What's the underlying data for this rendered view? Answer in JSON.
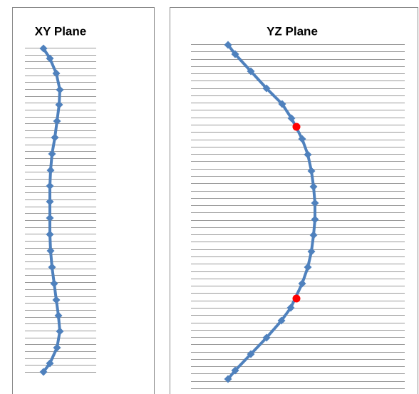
{
  "chart_data": [
    {
      "type": "line",
      "title": "XY Plane",
      "color": "#4f81bd",
      "xlim": [
        0,
        100
      ],
      "ylim": [
        0,
        460
      ],
      "x": [
        26,
        35,
        44,
        49,
        48,
        45,
        42,
        38,
        36,
        35,
        35,
        35,
        35,
        36,
        38,
        41,
        44,
        47,
        49,
        45,
        35,
        26
      ],
      "values": [
        457,
        443,
        422,
        399,
        378,
        355,
        332,
        309,
        286,
        264,
        242,
        219,
        196,
        173,
        150,
        127,
        104,
        82,
        60,
        37,
        15,
        3
      ]
    },
    {
      "type": "line",
      "title": "YZ Plane",
      "color": "#4f81bd",
      "xlim": [
        0,
        300
      ],
      "ylim": [
        0,
        475
      ],
      "x": [
        52,
        62,
        84,
        106,
        128,
        141,
        156,
        164,
        169,
        172,
        174,
        174,
        172,
        169,
        164,
        156,
        140,
        127,
        106,
        84,
        62,
        52
      ],
      "values": [
        472,
        459,
        435,
        411,
        389,
        369,
        340,
        318,
        295,
        273,
        250,
        227,
        205,
        182,
        160,
        137,
        103,
        85,
        61,
        38,
        15,
        3
      ],
      "marker_color": "#ff0000",
      "marker_x": [
        148,
        148
      ],
      "marker_values": [
        357,
        116
      ]
    }
  ]
}
